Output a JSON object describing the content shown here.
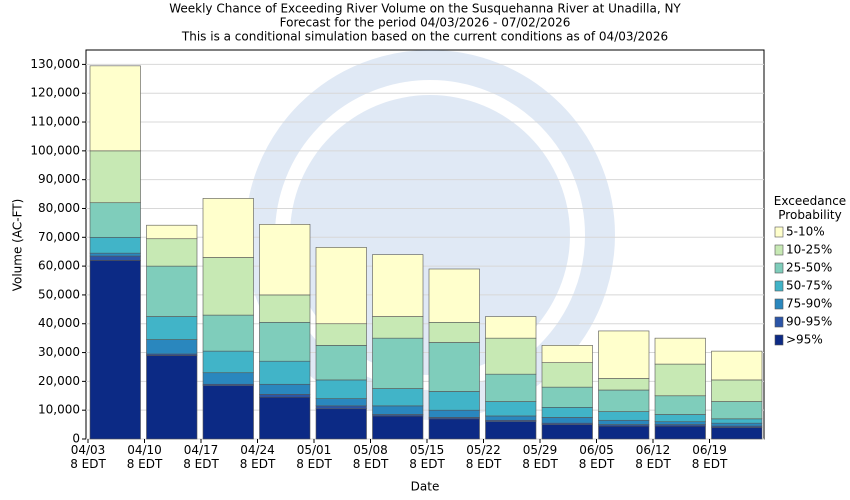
{
  "chart_data": {
    "type": "stacked_bar",
    "title": [
      "Weekly Chance of Exceeding River Volume on the Susquehanna River at Unadilla, NY",
      "Forecast for the period 04/03/2026 - 07/02/2026",
      "This is a conditional simulation based on the current conditions as of 04/03/2026"
    ],
    "x_label": "Date",
    "y_label": "Volume (AC-FT)",
    "legend_title": "Exceedance\nProbability",
    "categories": [
      "04/03\n8 EDT",
      "04/10\n8 EDT",
      "04/17\n8 EDT",
      "04/24\n8 EDT",
      "05/01\n8 EDT",
      "05/08\n8 EDT",
      "05/15\n8 EDT",
      "05/22\n8 EDT",
      "05/29\n8 EDT",
      "06/05\n8 EDT",
      "06/12\n8 EDT",
      "06/19\n8 EDT"
    ],
    "series": [
      {
        "name": ">95%",
        "color": "#0c2a85",
        "values": [
          62000,
          29000,
          18500,
          14500,
          10500,
          8000,
          7000,
          6000,
          5000,
          4500,
          4500,
          4000
        ]
      },
      {
        "name": "90-95%",
        "color": "#2b55a8",
        "values": [
          1500,
          500,
          500,
          1000,
          1000,
          500,
          500,
          500,
          500,
          500,
          500,
          500
        ]
      },
      {
        "name": "75-90%",
        "color": "#2a87be",
        "values": [
          1000,
          5000,
          4000,
          3500,
          2500,
          3000,
          2500,
          1500,
          2000,
          1500,
          1000,
          1000
        ]
      },
      {
        "name": "50-75%",
        "color": "#41b4c8",
        "values": [
          5500,
          8000,
          7500,
          8000,
          6500,
          6000,
          6500,
          5000,
          3500,
          3000,
          2500,
          1500
        ]
      },
      {
        "name": "25-50%",
        "color": "#7fcdbb",
        "values": [
          12000,
          17500,
          12500,
          13500,
          12000,
          17500,
          17000,
          9500,
          7000,
          7500,
          6500,
          6000
        ]
      },
      {
        "name": "10-25%",
        "color": "#c7e9b4",
        "values": [
          18000,
          9500,
          20000,
          9500,
          7500,
          7500,
          7000,
          12500,
          8500,
          4000,
          11000,
          7500
        ]
      },
      {
        "name": "5-10%",
        "color": "#ffffcc",
        "values": [
          29500,
          4700,
          20500,
          24500,
          26500,
          21500,
          18500,
          7500,
          6000,
          16500,
          9000,
          10000
        ]
      }
    ],
    "ylim": [
      0,
      135000
    ],
    "yticks": [
      0,
      {
        "value": 10000,
        "label": "10,000"
      },
      {
        "value": 20000,
        "label": "20,000"
      },
      {
        "value": 30000,
        "label": "30,000"
      },
      {
        "value": 40000,
        "label": "40,000"
      },
      {
        "value": 50000,
        "label": "50,000"
      },
      {
        "value": 60000,
        "label": "60,000"
      },
      {
        "value": 70000,
        "label": "70,000"
      },
      {
        "value": 80000,
        "label": "80,000"
      },
      {
        "value": 90000,
        "label": "90,000"
      },
      {
        "value": 100000,
        "label": "100,000"
      },
      {
        "value": 110000,
        "label": "110,000"
      },
      {
        "value": 120000,
        "label": "120,000"
      },
      {
        "value": 130000,
        "label": "130,000"
      }
    ],
    "grid": true,
    "legend": "right"
  }
}
